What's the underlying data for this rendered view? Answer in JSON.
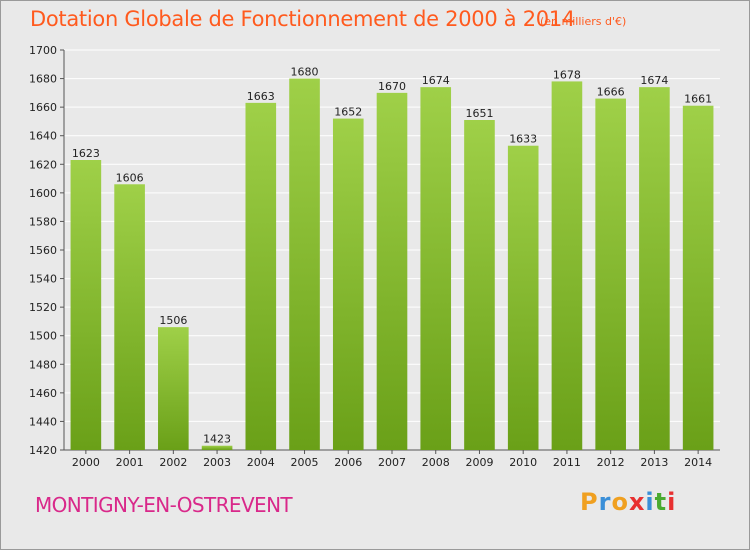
{
  "title": "Dotation Globale de Fonctionnement de 2000 à 2014",
  "unit_note": "(en milliers d'€)",
  "commune": "MONTIGNY-EN-OSTREVENT",
  "logo": {
    "letters": [
      "P",
      "r",
      "o",
      "x",
      "i",
      "t",
      "i"
    ],
    "colors": [
      "#f0a020",
      "#3a8fd8",
      "#f0a020",
      "#e83030",
      "#3a8fd8",
      "#4aaa30",
      "#e83030"
    ]
  },
  "colors": {
    "title": "#ff5a1e",
    "commune": "#d9288a",
    "bar_light": "#9fd048",
    "bar_dark": "#6aa018",
    "plot_bg": "#e9e9e9",
    "grid": "#ffffff"
  },
  "chart_data": {
    "type": "bar",
    "title": "Dotation Globale de Fonctionnement de 2000 à 2014",
    "categories": [
      "2000",
      "2001",
      "2002",
      "2003",
      "2004",
      "2005",
      "2006",
      "2007",
      "2008",
      "2009",
      "2010",
      "2011",
      "2012",
      "2013",
      "2014"
    ],
    "values": [
      1623,
      1606,
      1506,
      1423,
      1663,
      1680,
      1652,
      1670,
      1674,
      1651,
      1633,
      1678,
      1666,
      1674,
      1661
    ],
    "ylim": [
      1420,
      1700
    ],
    "yticks": [
      1420,
      1440,
      1460,
      1480,
      1500,
      1520,
      1540,
      1560,
      1580,
      1600,
      1620,
      1640,
      1660,
      1680,
      1700
    ],
    "grid": true,
    "legend": "none"
  }
}
